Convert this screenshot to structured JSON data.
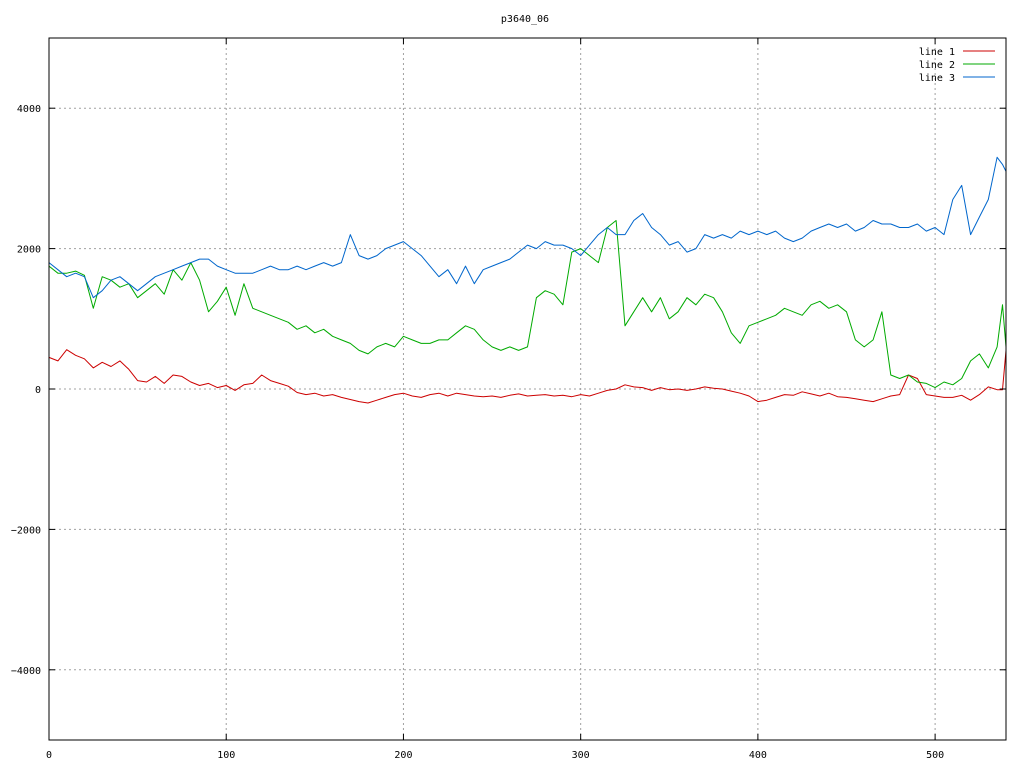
{
  "chart_data": {
    "type": "line",
    "title": "p3640_06",
    "xlabel": "",
    "ylabel": "",
    "xlim": [
      0,
      540
    ],
    "ylim": [
      -5000,
      5000
    ],
    "x_ticks": [
      0,
      100,
      200,
      300,
      400,
      500
    ],
    "y_ticks": [
      -4000,
      -2000,
      0,
      2000,
      4000
    ],
    "grid": true,
    "legend_position": "top-right",
    "series": [
      {
        "name": "line 1",
        "color": "#cc0000",
        "points": [
          [
            0,
            450
          ],
          [
            5,
            400
          ],
          [
            10,
            560
          ],
          [
            15,
            480
          ],
          [
            20,
            430
          ],
          [
            25,
            300
          ],
          [
            30,
            380
          ],
          [
            35,
            320
          ],
          [
            40,
            400
          ],
          [
            45,
            280
          ],
          [
            50,
            120
          ],
          [
            55,
            100
          ],
          [
            60,
            180
          ],
          [
            65,
            80
          ],
          [
            70,
            200
          ],
          [
            75,
            180
          ],
          [
            80,
            100
          ],
          [
            85,
            50
          ],
          [
            90,
            80
          ],
          [
            95,
            20
          ],
          [
            100,
            50
          ],
          [
            105,
            -20
          ],
          [
            110,
            60
          ],
          [
            115,
            80
          ],
          [
            120,
            200
          ],
          [
            125,
            120
          ],
          [
            130,
            80
          ],
          [
            135,
            40
          ],
          [
            140,
            -50
          ],
          [
            145,
            -80
          ],
          [
            150,
            -60
          ],
          [
            155,
            -100
          ],
          [
            160,
            -80
          ],
          [
            165,
            -120
          ],
          [
            170,
            -150
          ],
          [
            175,
            -180
          ],
          [
            180,
            -200
          ],
          [
            185,
            -160
          ],
          [
            190,
            -120
          ],
          [
            195,
            -80
          ],
          [
            200,
            -60
          ],
          [
            205,
            -100
          ],
          [
            210,
            -120
          ],
          [
            215,
            -80
          ],
          [
            220,
            -60
          ],
          [
            225,
            -100
          ],
          [
            230,
            -60
          ],
          [
            235,
            -80
          ],
          [
            240,
            -100
          ],
          [
            245,
            -110
          ],
          [
            250,
            -100
          ],
          [
            255,
            -120
          ],
          [
            260,
            -90
          ],
          [
            265,
            -70
          ],
          [
            270,
            -100
          ],
          [
            275,
            -90
          ],
          [
            280,
            -80
          ],
          [
            285,
            -100
          ],
          [
            290,
            -90
          ],
          [
            295,
            -110
          ],
          [
            300,
            -80
          ],
          [
            305,
            -100
          ],
          [
            310,
            -60
          ],
          [
            315,
            -20
          ],
          [
            320,
            0
          ],
          [
            325,
            60
          ],
          [
            330,
            30
          ],
          [
            335,
            20
          ],
          [
            340,
            -20
          ],
          [
            345,
            20
          ],
          [
            350,
            -10
          ],
          [
            355,
            0
          ],
          [
            360,
            -20
          ],
          [
            365,
            0
          ],
          [
            370,
            30
          ],
          [
            375,
            10
          ],
          [
            380,
            0
          ],
          [
            385,
            -30
          ],
          [
            390,
            -60
          ],
          [
            395,
            -100
          ],
          [
            400,
            -180
          ],
          [
            405,
            -160
          ],
          [
            410,
            -120
          ],
          [
            415,
            -80
          ],
          [
            420,
            -90
          ],
          [
            425,
            -40
          ],
          [
            430,
            -70
          ],
          [
            435,
            -100
          ],
          [
            440,
            -60
          ],
          [
            445,
            -110
          ],
          [
            450,
            -120
          ],
          [
            455,
            -140
          ],
          [
            460,
            -160
          ],
          [
            465,
            -180
          ],
          [
            470,
            -140
          ],
          [
            475,
            -100
          ],
          [
            480,
            -80
          ],
          [
            485,
            200
          ],
          [
            490,
            150
          ],
          [
            495,
            -80
          ],
          [
            500,
            -100
          ],
          [
            505,
            -120
          ],
          [
            510,
            -120
          ],
          [
            515,
            -90
          ],
          [
            520,
            -160
          ],
          [
            525,
            -80
          ],
          [
            530,
            30
          ],
          [
            535,
            -10
          ],
          [
            538,
            -10
          ],
          [
            540,
            550
          ]
        ]
      },
      {
        "name": "line 2",
        "color": "#00aa00",
        "points": [
          [
            0,
            1750
          ],
          [
            5,
            1650
          ],
          [
            10,
            1650
          ],
          [
            15,
            1680
          ],
          [
            20,
            1620
          ],
          [
            25,
            1150
          ],
          [
            30,
            1600
          ],
          [
            35,
            1550
          ],
          [
            40,
            1450
          ],
          [
            45,
            1500
          ],
          [
            50,
            1300
          ],
          [
            55,
            1400
          ],
          [
            60,
            1500
          ],
          [
            65,
            1350
          ],
          [
            70,
            1700
          ],
          [
            75,
            1550
          ],
          [
            80,
            1800
          ],
          [
            85,
            1550
          ],
          [
            90,
            1100
          ],
          [
            95,
            1250
          ],
          [
            100,
            1450
          ],
          [
            105,
            1050
          ],
          [
            110,
            1500
          ],
          [
            115,
            1150
          ],
          [
            120,
            1100
          ],
          [
            125,
            1050
          ],
          [
            130,
            1000
          ],
          [
            135,
            950
          ],
          [
            140,
            850
          ],
          [
            145,
            900
          ],
          [
            150,
            800
          ],
          [
            155,
            850
          ],
          [
            160,
            750
          ],
          [
            165,
            700
          ],
          [
            170,
            650
          ],
          [
            175,
            550
          ],
          [
            180,
            500
          ],
          [
            185,
            600
          ],
          [
            190,
            650
          ],
          [
            195,
            600
          ],
          [
            200,
            750
          ],
          [
            205,
            700
          ],
          [
            210,
            650
          ],
          [
            215,
            650
          ],
          [
            220,
            700
          ],
          [
            225,
            700
          ],
          [
            230,
            800
          ],
          [
            235,
            900
          ],
          [
            240,
            850
          ],
          [
            245,
            700
          ],
          [
            250,
            600
          ],
          [
            255,
            550
          ],
          [
            260,
            600
          ],
          [
            265,
            550
          ],
          [
            270,
            600
          ],
          [
            275,
            1300
          ],
          [
            280,
            1400
          ],
          [
            285,
            1350
          ],
          [
            290,
            1200
          ],
          [
            295,
            1950
          ],
          [
            300,
            2000
          ],
          [
            305,
            1900
          ],
          [
            310,
            1800
          ],
          [
            315,
            2300
          ],
          [
            320,
            2400
          ],
          [
            325,
            900
          ],
          [
            330,
            1100
          ],
          [
            335,
            1300
          ],
          [
            340,
            1100
          ],
          [
            345,
            1300
          ],
          [
            350,
            1000
          ],
          [
            355,
            1100
          ],
          [
            360,
            1300
          ],
          [
            365,
            1200
          ],
          [
            370,
            1350
          ],
          [
            375,
            1300
          ],
          [
            380,
            1100
          ],
          [
            385,
            800
          ],
          [
            390,
            650
          ],
          [
            395,
            900
          ],
          [
            400,
            950
          ],
          [
            405,
            1000
          ],
          [
            410,
            1050
          ],
          [
            415,
            1150
          ],
          [
            420,
            1100
          ],
          [
            425,
            1050
          ],
          [
            430,
            1200
          ],
          [
            435,
            1250
          ],
          [
            440,
            1150
          ],
          [
            445,
            1200
          ],
          [
            450,
            1100
          ],
          [
            455,
            700
          ],
          [
            460,
            600
          ],
          [
            465,
            700
          ],
          [
            470,
            1100
          ],
          [
            475,
            200
          ],
          [
            480,
            150
          ],
          [
            485,
            200
          ],
          [
            490,
            100
          ],
          [
            495,
            80
          ],
          [
            500,
            20
          ],
          [
            505,
            100
          ],
          [
            510,
            60
          ],
          [
            515,
            150
          ],
          [
            520,
            400
          ],
          [
            525,
            500
          ],
          [
            530,
            300
          ],
          [
            535,
            600
          ],
          [
            538,
            1200
          ],
          [
            540,
            600
          ]
        ]
      },
      {
        "name": "line 3",
        "color": "#0066cc",
        "points": [
          [
            0,
            1800
          ],
          [
            5,
            1700
          ],
          [
            10,
            1600
          ],
          [
            15,
            1650
          ],
          [
            20,
            1600
          ],
          [
            25,
            1300
          ],
          [
            30,
            1400
          ],
          [
            35,
            1550
          ],
          [
            40,
            1600
          ],
          [
            45,
            1500
          ],
          [
            50,
            1400
          ],
          [
            55,
            1500
          ],
          [
            60,
            1600
          ],
          [
            65,
            1650
          ],
          [
            70,
            1700
          ],
          [
            75,
            1750
          ],
          [
            80,
            1800
          ],
          [
            85,
            1850
          ],
          [
            90,
            1850
          ],
          [
            95,
            1750
          ],
          [
            100,
            1700
          ],
          [
            105,
            1650
          ],
          [
            110,
            1650
          ],
          [
            115,
            1650
          ],
          [
            120,
            1700
          ],
          [
            125,
            1750
          ],
          [
            130,
            1700
          ],
          [
            135,
            1700
          ],
          [
            140,
            1750
          ],
          [
            145,
            1700
          ],
          [
            150,
            1750
          ],
          [
            155,
            1800
          ],
          [
            160,
            1750
          ],
          [
            165,
            1800
          ],
          [
            170,
            2200
          ],
          [
            175,
            1900
          ],
          [
            180,
            1850
          ],
          [
            185,
            1900
          ],
          [
            190,
            2000
          ],
          [
            195,
            2050
          ],
          [
            200,
            2100
          ],
          [
            205,
            2000
          ],
          [
            210,
            1900
          ],
          [
            215,
            1750
          ],
          [
            220,
            1600
          ],
          [
            225,
            1700
          ],
          [
            230,
            1500
          ],
          [
            235,
            1750
          ],
          [
            240,
            1500
          ],
          [
            245,
            1700
          ],
          [
            250,
            1750
          ],
          [
            255,
            1800
          ],
          [
            260,
            1850
          ],
          [
            265,
            1950
          ],
          [
            270,
            2050
          ],
          [
            275,
            2000
          ],
          [
            280,
            2100
          ],
          [
            285,
            2050
          ],
          [
            290,
            2050
          ],
          [
            295,
            2000
          ],
          [
            300,
            1900
          ],
          [
            305,
            2050
          ],
          [
            310,
            2200
          ],
          [
            315,
            2300
          ],
          [
            320,
            2200
          ],
          [
            325,
            2200
          ],
          [
            330,
            2400
          ],
          [
            335,
            2500
          ],
          [
            340,
            2300
          ],
          [
            345,
            2200
          ],
          [
            350,
            2050
          ],
          [
            355,
            2100
          ],
          [
            360,
            1950
          ],
          [
            365,
            2000
          ],
          [
            370,
            2200
          ],
          [
            375,
            2150
          ],
          [
            380,
            2200
          ],
          [
            385,
            2150
          ],
          [
            390,
            2250
          ],
          [
            395,
            2200
          ],
          [
            400,
            2250
          ],
          [
            405,
            2200
          ],
          [
            410,
            2250
          ],
          [
            415,
            2150
          ],
          [
            420,
            2100
          ],
          [
            425,
            2150
          ],
          [
            430,
            2250
          ],
          [
            435,
            2300
          ],
          [
            440,
            2350
          ],
          [
            445,
            2300
          ],
          [
            450,
            2350
          ],
          [
            455,
            2250
          ],
          [
            460,
            2300
          ],
          [
            465,
            2400
          ],
          [
            470,
            2350
          ],
          [
            475,
            2350
          ],
          [
            480,
            2300
          ],
          [
            485,
            2300
          ],
          [
            490,
            2350
          ],
          [
            495,
            2250
          ],
          [
            500,
            2300
          ],
          [
            505,
            2200
          ],
          [
            510,
            2700
          ],
          [
            515,
            2900
          ],
          [
            520,
            2200
          ],
          [
            525,
            2450
          ],
          [
            530,
            2700
          ],
          [
            535,
            3300
          ],
          [
            538,
            3200
          ],
          [
            540,
            3100
          ]
        ]
      }
    ]
  }
}
